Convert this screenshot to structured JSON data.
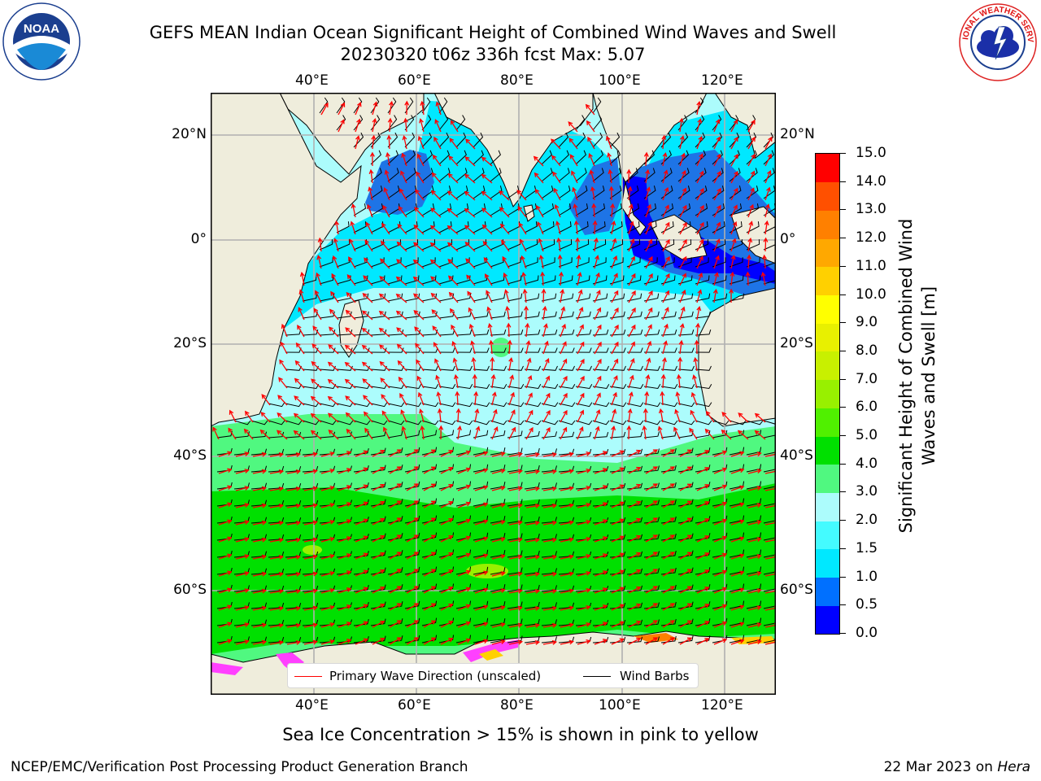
{
  "header": {
    "title_line1": "GEFS MEAN Indian Ocean Significant Height of Combined Wind Waves and Swell",
    "title_line2": "20230320 t06z 336h fcst   Max: 5.07"
  },
  "logos": {
    "left": {
      "name": "NOAA",
      "ring_text": "NATIONAL OCEANIC AND ATMOSPHERIC ADMINISTRATION · U.S. DEPARTMENT OF COMMERCE",
      "center_text": "NOAA"
    },
    "right": {
      "name": "NATIONAL WEATHER SERVICE",
      "ring_text": "NATIONAL WEATHER SERVICE"
    }
  },
  "map": {
    "lon_ticks": [
      "40°E",
      "60°E",
      "80°E",
      "100°E",
      "120°E"
    ],
    "lat_ticks": [
      "20°N",
      "0°",
      "20°S",
      "40°S",
      "60°S"
    ],
    "land_color": "#efeddc",
    "grid": true
  },
  "colorbar": {
    "label": "Significant Height of Combined Wind Waves and Swell [m]",
    "ticks": [
      "0.0",
      "0.5",
      "1.0",
      "1.5",
      "2.0",
      "3.0",
      "4.0",
      "5.0",
      "6.0",
      "7.0",
      "8.0",
      "9.0",
      "10.0",
      "11.0",
      "12.0",
      "13.0",
      "14.0",
      "15.0"
    ],
    "colors": [
      "#0000ff",
      "#0070ff",
      "#00e8ff",
      "#44fbff",
      "#acfcfc",
      "#50f880",
      "#00e000",
      "#50f000",
      "#98f000",
      "#c8f000",
      "#e8f000",
      "#ffff00",
      "#ffd000",
      "#ffa800",
      "#ff8000",
      "#ff5000",
      "#ff0000"
    ]
  },
  "legend": {
    "primary_wave": "Primary Wave Direction (unscaled)",
    "wind_barbs": "Wind Barbs",
    "primary_color": "#ff0000",
    "barb_color": "#000000"
  },
  "notes": {
    "sea_ice": "Sea Ice Concentration > 15% is shown in pink to yellow"
  },
  "footer": {
    "left": "NCEP/EMC/Verification Post Processing Product Generation Branch",
    "right_date": "22 Mar 2023 on ",
    "right_host": "Hera"
  }
}
